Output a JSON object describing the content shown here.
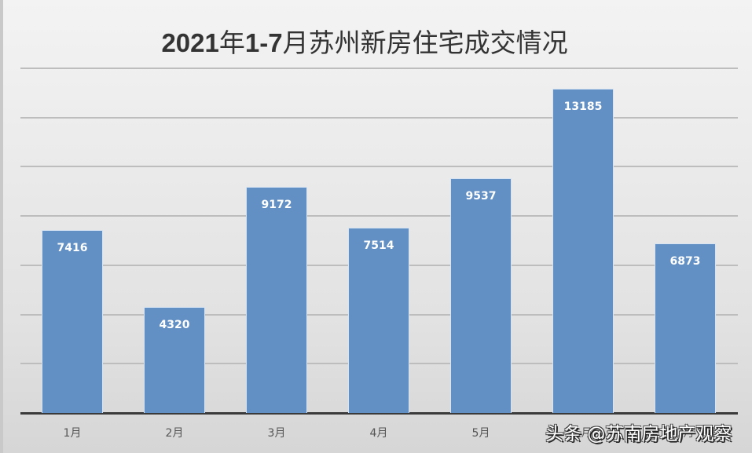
{
  "chart_data": {
    "type": "bar",
    "title": "2021年1-7月苏州新房住宅成交情况",
    "categories": [
      "1月",
      "2月",
      "3月",
      "4月",
      "5月",
      "6月",
      "7月"
    ],
    "values": [
      7416,
      4320,
      9172,
      7514,
      9537,
      13185,
      6873
    ],
    "xlabel": "",
    "ylabel": "",
    "ylim": [
      0,
      14000
    ],
    "grid": true,
    "gridlines": [
      2000,
      4000,
      6000,
      8000,
      10000,
      12000,
      14000
    ],
    "y_tick_labels_visible": false,
    "legend": "none",
    "bar_color": "#628fc4",
    "data_labels": true
  },
  "title_parts": {
    "prefix": "2021",
    "a": "年",
    "mid": "1-7",
    "b": "月苏州新房住宅成交情况"
  },
  "watermark": "头条 @苏南房地产观察"
}
